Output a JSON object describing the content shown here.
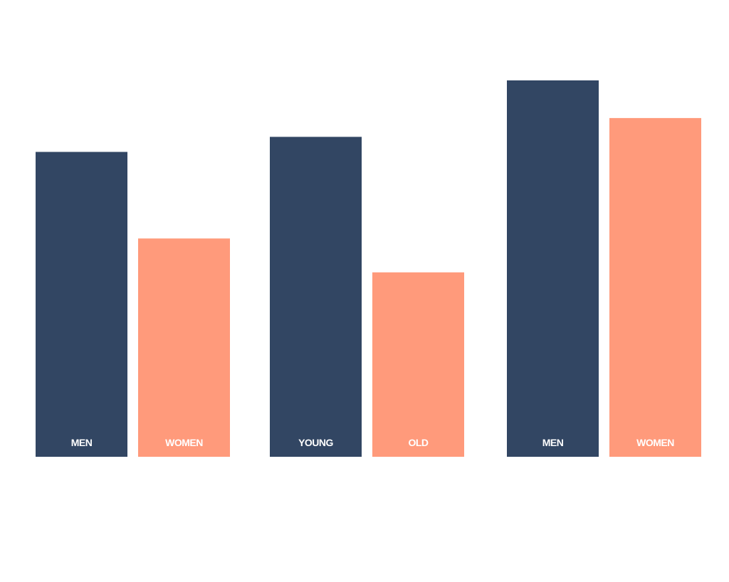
{
  "chart_data": {
    "type": "bar",
    "title": "",
    "xlabel": "",
    "ylabel": "",
    "ylim": [
      0,
      100
    ],
    "grid": false,
    "legend": "none",
    "colors": {
      "primary": "#324663",
      "secondary": "#ff9a7b"
    },
    "groups": [
      {
        "bars": [
          {
            "label": "MEN",
            "value": 81,
            "color": "primary"
          },
          {
            "label": "WOMEN",
            "value": 58,
            "color": "secondary"
          }
        ]
      },
      {
        "bars": [
          {
            "label": "YOUNG",
            "value": 85,
            "color": "primary"
          },
          {
            "label": "OLD",
            "value": 49,
            "color": "secondary"
          }
        ]
      },
      {
        "bars": [
          {
            "label": "MEN",
            "value": 100,
            "color": "primary"
          },
          {
            "label": "WOMEN",
            "value": 90,
            "color": "secondary"
          }
        ]
      }
    ]
  }
}
